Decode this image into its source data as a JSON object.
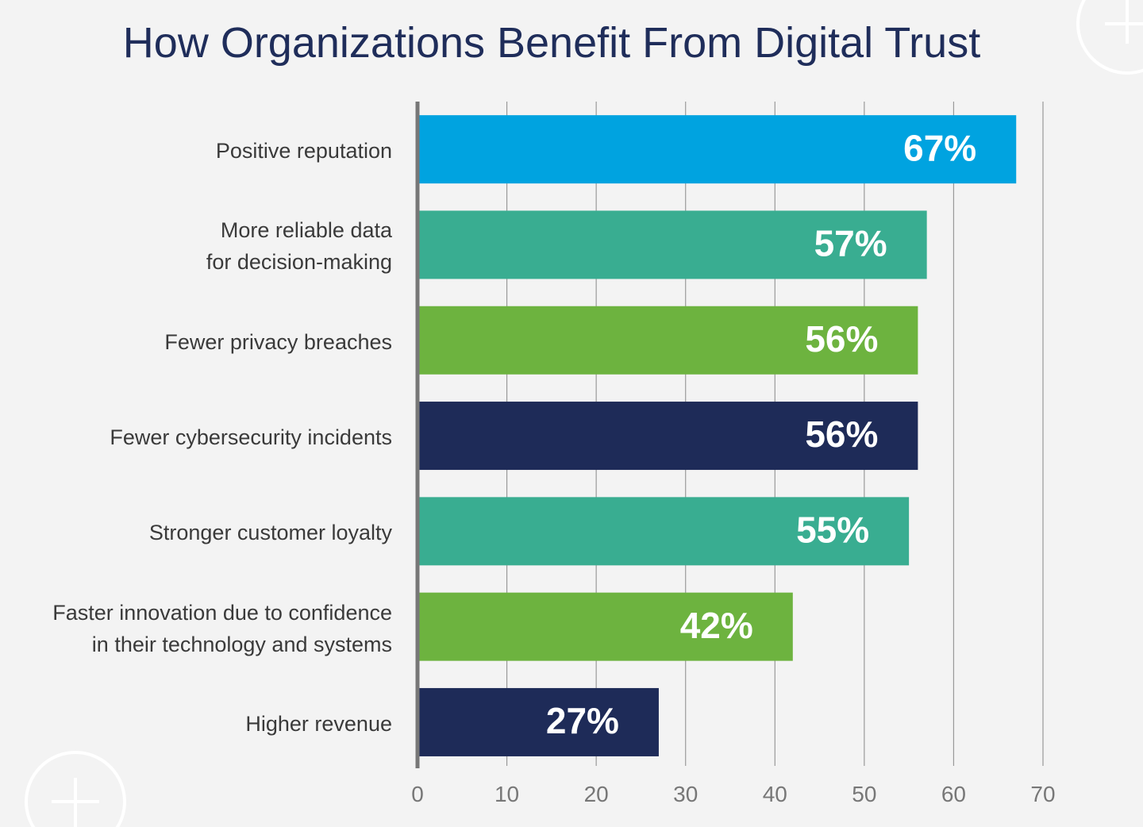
{
  "chart_data": {
    "type": "barh",
    "title": "How Organizations Benefit From Digital Trust",
    "categories": [
      "Positive reputation",
      "More reliable data\nfor decision-making",
      "Fewer privacy breaches",
      "Fewer cybersecurity incidents",
      "Stronger customer loyalty",
      "Faster innovation due to confidence\nin their technology and systems",
      "Higher revenue"
    ],
    "values": [
      67,
      57,
      56,
      56,
      55,
      42,
      27
    ],
    "value_labels": [
      "67%",
      "57%",
      "56%",
      "56%",
      "55%",
      "42%",
      "27%"
    ],
    "colors": [
      "#00a3e0",
      "#39ad91",
      "#6db33f",
      "#1e2b58",
      "#39ad91",
      "#6db33f",
      "#1e2b58"
    ],
    "xlim": [
      0,
      70
    ],
    "xticks": [
      0,
      10,
      20,
      30,
      40,
      50,
      60,
      70
    ],
    "grid": true
  }
}
